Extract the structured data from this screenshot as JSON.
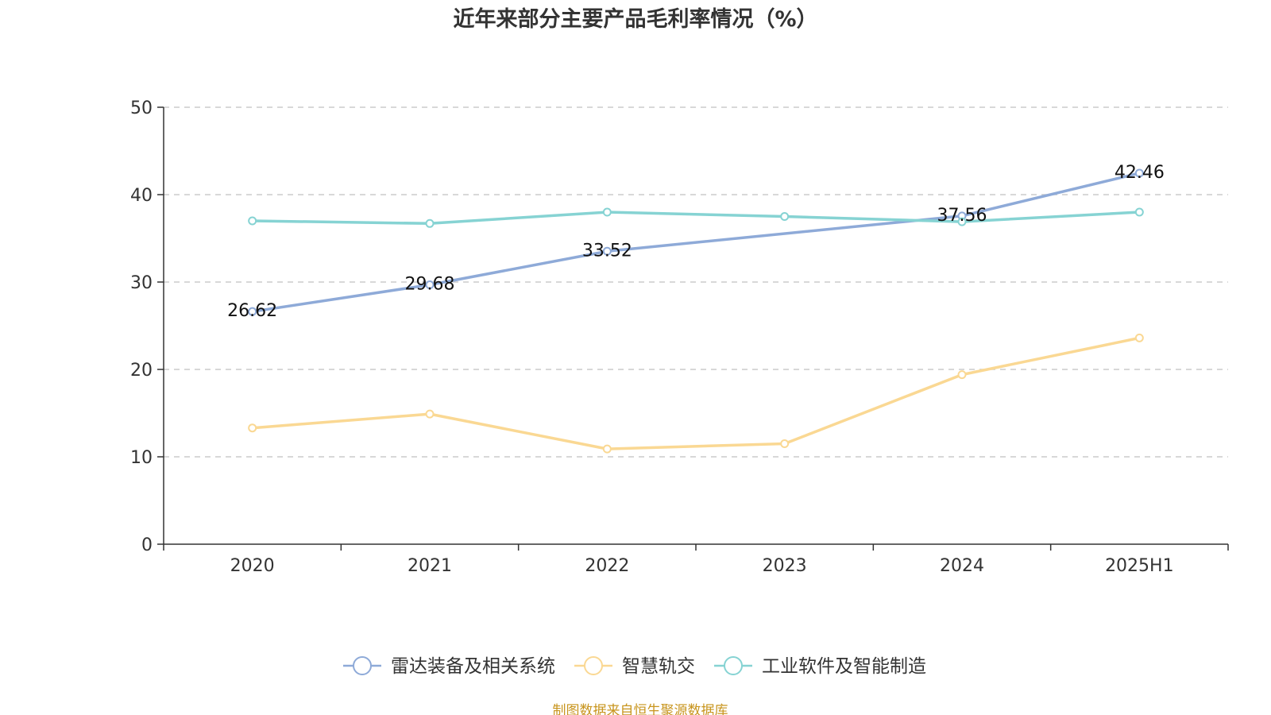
{
  "chart_data": {
    "type": "line",
    "title": "近年来部分主要产品毛利率情况（%）",
    "categories": [
      "2020",
      "2021",
      "2022",
      "2023",
      "2024",
      "2025H1"
    ],
    "ylim": [
      0,
      50
    ],
    "yticks": [
      0,
      10,
      20,
      30,
      40,
      50
    ],
    "grid": true,
    "legend_position": "bottom",
    "series": [
      {
        "name": "雷达装备及相关系统",
        "color": "#8eaad8",
        "values": [
          26.62,
          29.68,
          33.52,
          null,
          37.56,
          42.46
        ],
        "labels": [
          "26.62",
          "29.68",
          "33.52",
          null,
          "37.56",
          "42.46"
        ]
      },
      {
        "name": "智慧轨交",
        "color": "#fad893",
        "values": [
          13.3,
          14.9,
          10.9,
          11.5,
          19.4,
          23.6
        ],
        "labels": [
          null,
          null,
          null,
          null,
          null,
          null
        ]
      },
      {
        "name": "工业软件及智能制造",
        "color": "#86d3d3",
        "values": [
          37.0,
          36.7,
          38.0,
          37.5,
          36.9,
          38.0
        ],
        "labels": [
          null,
          null,
          null,
          null,
          null,
          null
        ]
      }
    ]
  },
  "footer": {
    "source": "制图数据来自恒生聚源数据库"
  }
}
